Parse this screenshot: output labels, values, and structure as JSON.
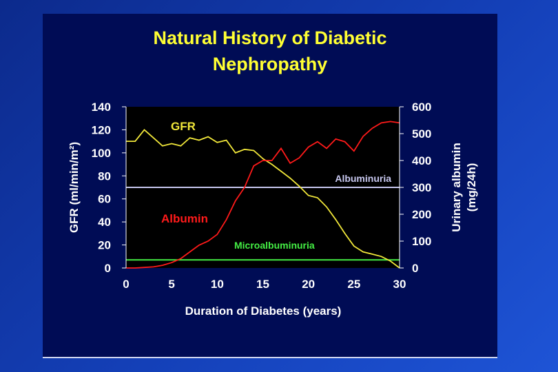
{
  "slide": {
    "title_line1": "Natural History of Diabetic",
    "title_line2": "Nephropathy"
  },
  "colors": {
    "gfr": "#f2e83a",
    "albumin": "#ff1a1a",
    "albuminuria_line": "#c8c8f0",
    "microalbuminuria_line": "#44ee44",
    "plot_background": "#000000",
    "axis_text": "#ffffff"
  },
  "chart_data": {
    "type": "line",
    "title": "Natural History of Diabetic Nephropathy",
    "xlabel": "Duration of Diabetes (years)",
    "ylabel_left": "GFR (ml/min/m²)",
    "ylabel_right_line1": "Urinary albumin",
    "ylabel_right_line2": "(mg/24h)",
    "xlim": [
      0,
      30
    ],
    "ylim_left": [
      0,
      140
    ],
    "ylim_right": [
      0,
      600
    ],
    "x_ticks": [
      "0",
      "5",
      "10",
      "15",
      "20",
      "25",
      "30"
    ],
    "y_left_ticks": [
      "0",
      "20",
      "40",
      "60",
      "80",
      "100",
      "120",
      "140"
    ],
    "y_right_ticks": [
      "0",
      "100",
      "200",
      "300",
      "400",
      "500",
      "600"
    ],
    "series": [
      {
        "name": "GFR",
        "axis": "left",
        "color": "#f2e83a",
        "x": [
          0,
          1,
          2,
          3,
          4,
          5,
          6,
          7,
          8,
          9,
          10,
          11,
          12,
          13,
          14,
          15,
          16,
          17,
          18,
          19,
          20,
          21,
          22,
          23,
          24,
          25,
          26,
          27,
          28,
          29,
          30
        ],
        "y": [
          110,
          110,
          120,
          113,
          106,
          108,
          106,
          113,
          111,
          114,
          109,
          111,
          100,
          103,
          102,
          95,
          90,
          84,
          78,
          71,
          63,
          61,
          53,
          42,
          30,
          19,
          14,
          12,
          10,
          6,
          0
        ]
      },
      {
        "name": "Albumin",
        "axis": "right",
        "color": "#ff1a1a",
        "x": [
          0,
          1,
          2,
          3,
          4,
          5,
          6,
          7,
          8,
          9,
          10,
          11,
          12,
          13,
          14,
          15,
          16,
          17,
          18,
          19,
          20,
          21,
          22,
          23,
          24,
          25,
          26,
          27,
          28,
          29,
          30
        ],
        "y": [
          0,
          0,
          2,
          4,
          10,
          20,
          35,
          60,
          85,
          100,
          125,
          180,
          250,
          300,
          380,
          400,
          400,
          445,
          390,
          410,
          450,
          470,
          445,
          480,
          470,
          435,
          490,
          520,
          540,
          545,
          540
        ]
      }
    ],
    "reference_lines": [
      {
        "label": "Albuminuria",
        "axis": "right",
        "value": 300,
        "color": "#c8c8f0"
      },
      {
        "label": "Microalbuminuria",
        "axis": "right",
        "value": 30,
        "color": "#44ee44"
      }
    ]
  }
}
